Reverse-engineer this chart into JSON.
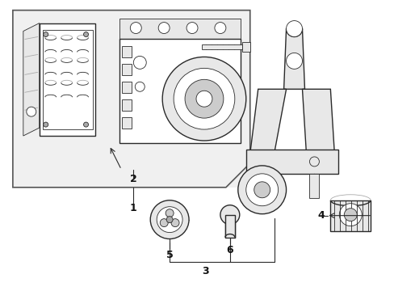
{
  "fig_width": 4.89,
  "fig_height": 3.6,
  "dpi": 100,
  "background_color": "#ffffff",
  "line_color": "#2a2a2a",
  "gray_light": "#e8e8e8",
  "gray_mid": "#cccccc",
  "gray_dark": "#aaaaaa",
  "box_fill": "#efefef",
  "lw_main": 1.0,
  "lw_thin": 0.6,
  "label_fs": 9
}
